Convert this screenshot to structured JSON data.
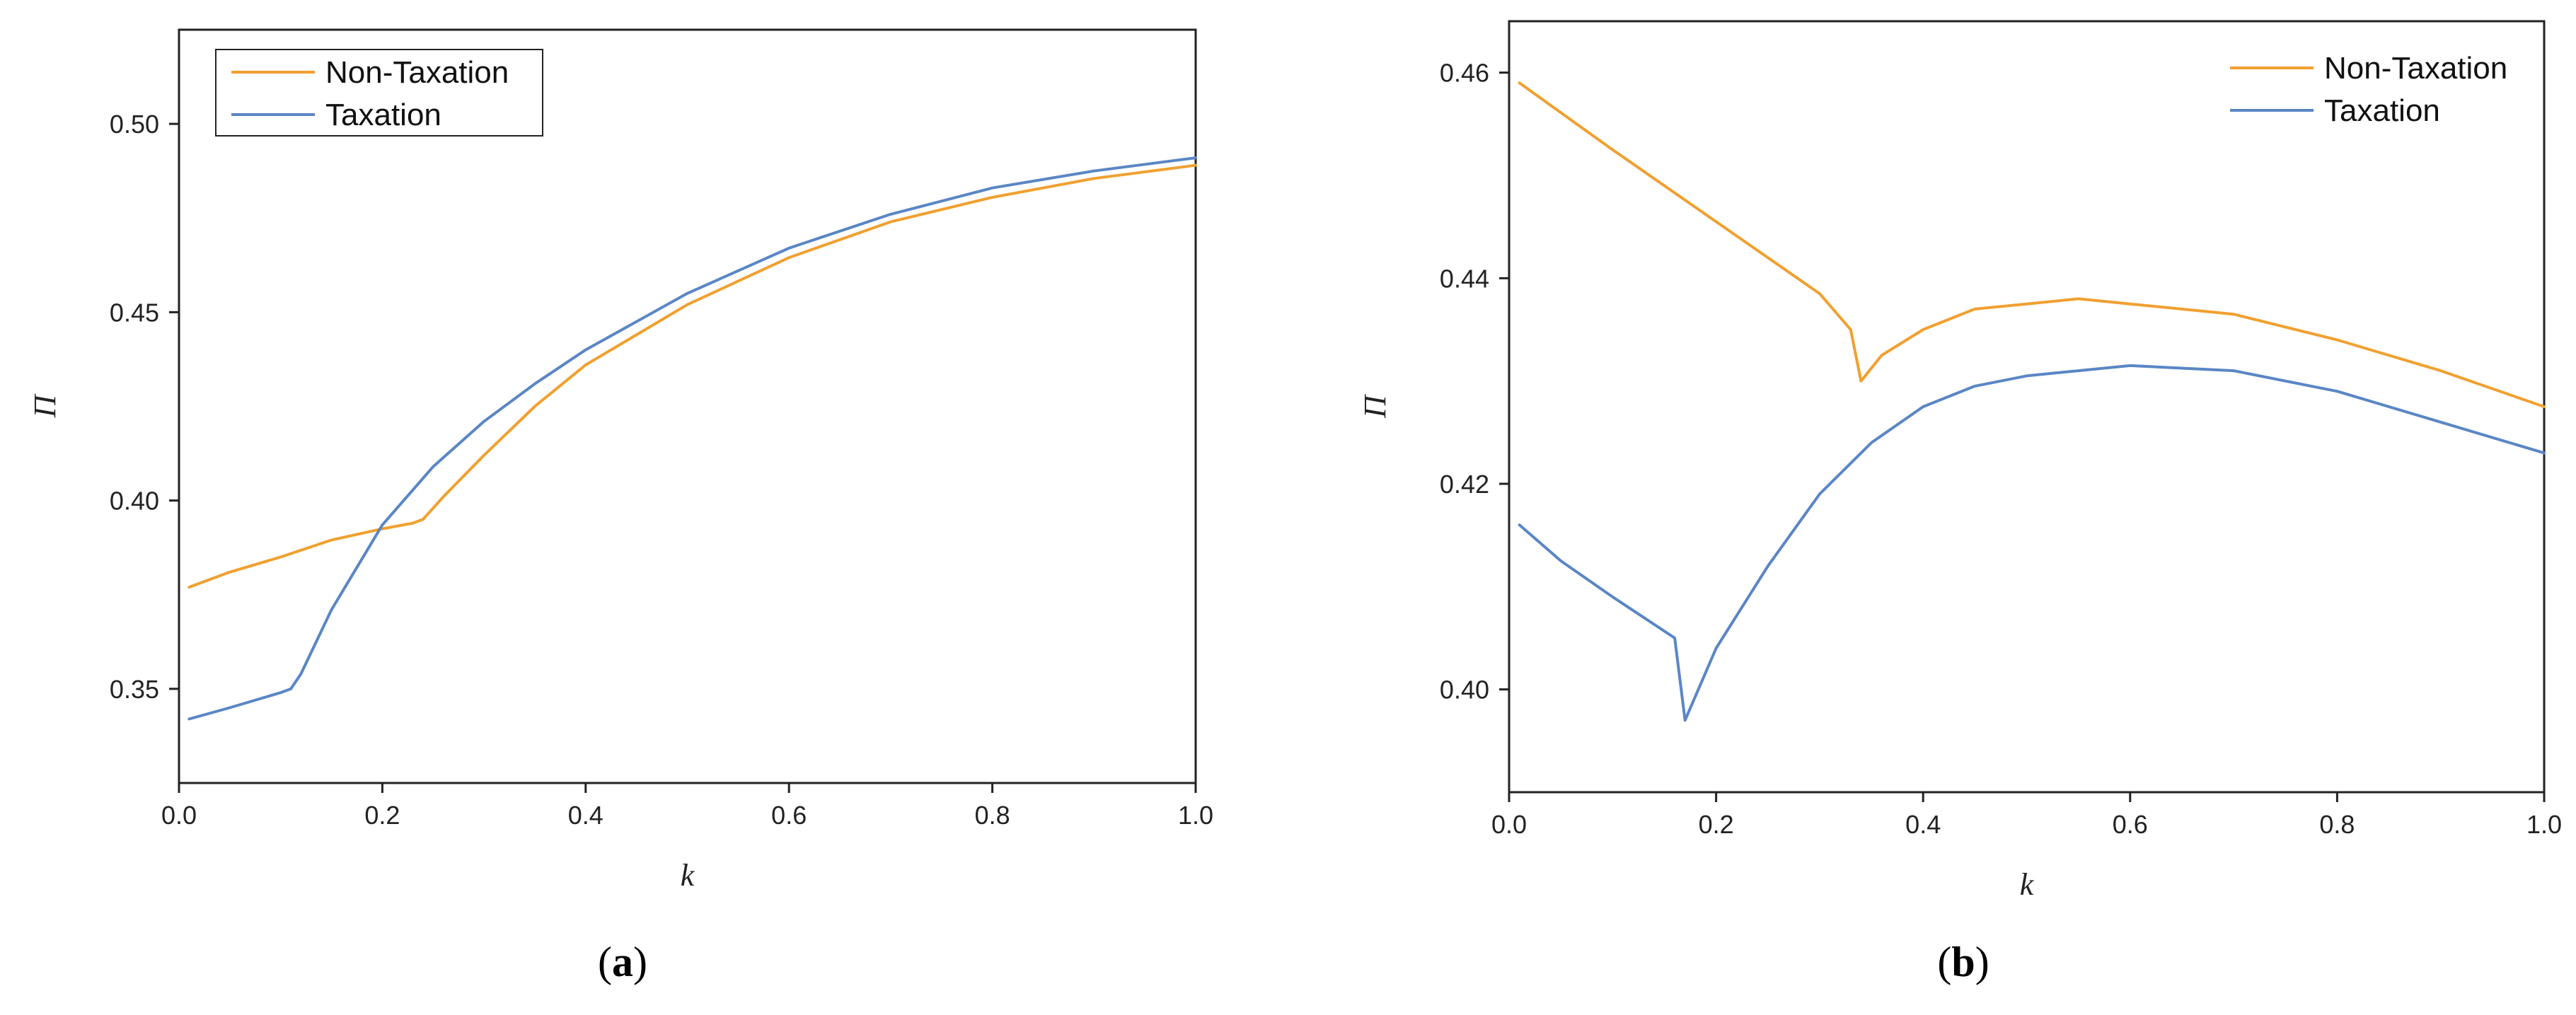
{
  "chart_data": [
    {
      "type": "line",
      "panel_label": {
        "open": "(",
        "letter": "a",
        "close": ")"
      },
      "xlabel": "k",
      "ylabel": "Π",
      "xlim": [
        0.0,
        1.0
      ],
      "ylim": [
        0.325,
        0.525
      ],
      "x_ticks": [
        "0.0",
        "0.2",
        "0.4",
        "0.6",
        "0.8",
        "1.0"
      ],
      "x_tick_values": [
        0.0,
        0.2,
        0.4,
        0.6,
        0.8,
        1.0
      ],
      "y_ticks": [
        "0.35",
        "0.40",
        "0.45",
        "0.50"
      ],
      "y_tick_values": [
        0.35,
        0.4,
        0.45,
        0.5
      ],
      "grid": false,
      "legend": {
        "placement": "top-left",
        "boxed": true
      },
      "series": [
        {
          "name": "Non-Taxation",
          "color": "#F0A030",
          "x": [
            0.01,
            0.05,
            0.1,
            0.15,
            0.2,
            0.23,
            0.24,
            0.26,
            0.3,
            0.35,
            0.4,
            0.5,
            0.6,
            0.7,
            0.8,
            0.9,
            1.0
          ],
          "y": [
            0.377,
            0.381,
            0.385,
            0.3895,
            0.3925,
            0.394,
            0.395,
            0.401,
            0.412,
            0.425,
            0.436,
            0.452,
            0.4645,
            0.474,
            0.4805,
            0.4855,
            0.489
          ]
        },
        {
          "name": "Taxation",
          "color": "#5A86C5",
          "x": [
            0.01,
            0.05,
            0.1,
            0.11,
            0.12,
            0.15,
            0.2,
            0.25,
            0.3,
            0.35,
            0.4,
            0.5,
            0.6,
            0.7,
            0.8,
            0.9,
            1.0
          ],
          "y": [
            0.342,
            0.345,
            0.349,
            0.35,
            0.354,
            0.371,
            0.3935,
            0.409,
            0.421,
            0.431,
            0.44,
            0.455,
            0.467,
            0.476,
            0.483,
            0.4875,
            0.491
          ]
        }
      ]
    },
    {
      "type": "line",
      "panel_label": {
        "open": "(",
        "letter": "b",
        "close": ")"
      },
      "xlabel": "k",
      "ylabel": "Π",
      "xlim": [
        0.0,
        1.0
      ],
      "ylim": [
        0.39,
        0.465
      ],
      "x_ticks": [
        "0.0",
        "0.2",
        "0.4",
        "0.6",
        "0.8",
        "1.0"
      ],
      "x_tick_values": [
        0.0,
        0.2,
        0.4,
        0.6,
        0.8,
        1.0
      ],
      "y_ticks": [
        "0.40",
        "0.42",
        "0.44",
        "0.46"
      ],
      "y_tick_values": [
        0.4,
        0.42,
        0.44,
        0.46
      ],
      "grid": false,
      "legend": {
        "placement": "top-right",
        "boxed": false
      },
      "series": [
        {
          "name": "Non-Taxation",
          "color": "#F0A030",
          "x": [
            0.01,
            0.1,
            0.2,
            0.3,
            0.33,
            0.34,
            0.36,
            0.4,
            0.45,
            0.5,
            0.55,
            0.6,
            0.7,
            0.8,
            0.9,
            1.0
          ],
          "y": [
            0.459,
            0.4525,
            0.4455,
            0.4385,
            0.435,
            0.43,
            0.4325,
            0.435,
            0.437,
            0.4375,
            0.438,
            0.4375,
            0.4365,
            0.434,
            0.431,
            0.4275
          ]
        },
        {
          "name": "Taxation",
          "color": "#5A86C5",
          "x": [
            0.01,
            0.05,
            0.1,
            0.16,
            0.17,
            0.2,
            0.25,
            0.3,
            0.35,
            0.4,
            0.45,
            0.5,
            0.55,
            0.6,
            0.7,
            0.8,
            0.9,
            1.0
          ],
          "y": [
            0.416,
            0.4125,
            0.409,
            0.405,
            0.397,
            0.404,
            0.412,
            0.419,
            0.424,
            0.4275,
            0.4295,
            0.4305,
            0.431,
            0.4315,
            0.431,
            0.429,
            0.426,
            0.423
          ]
        }
      ]
    }
  ]
}
